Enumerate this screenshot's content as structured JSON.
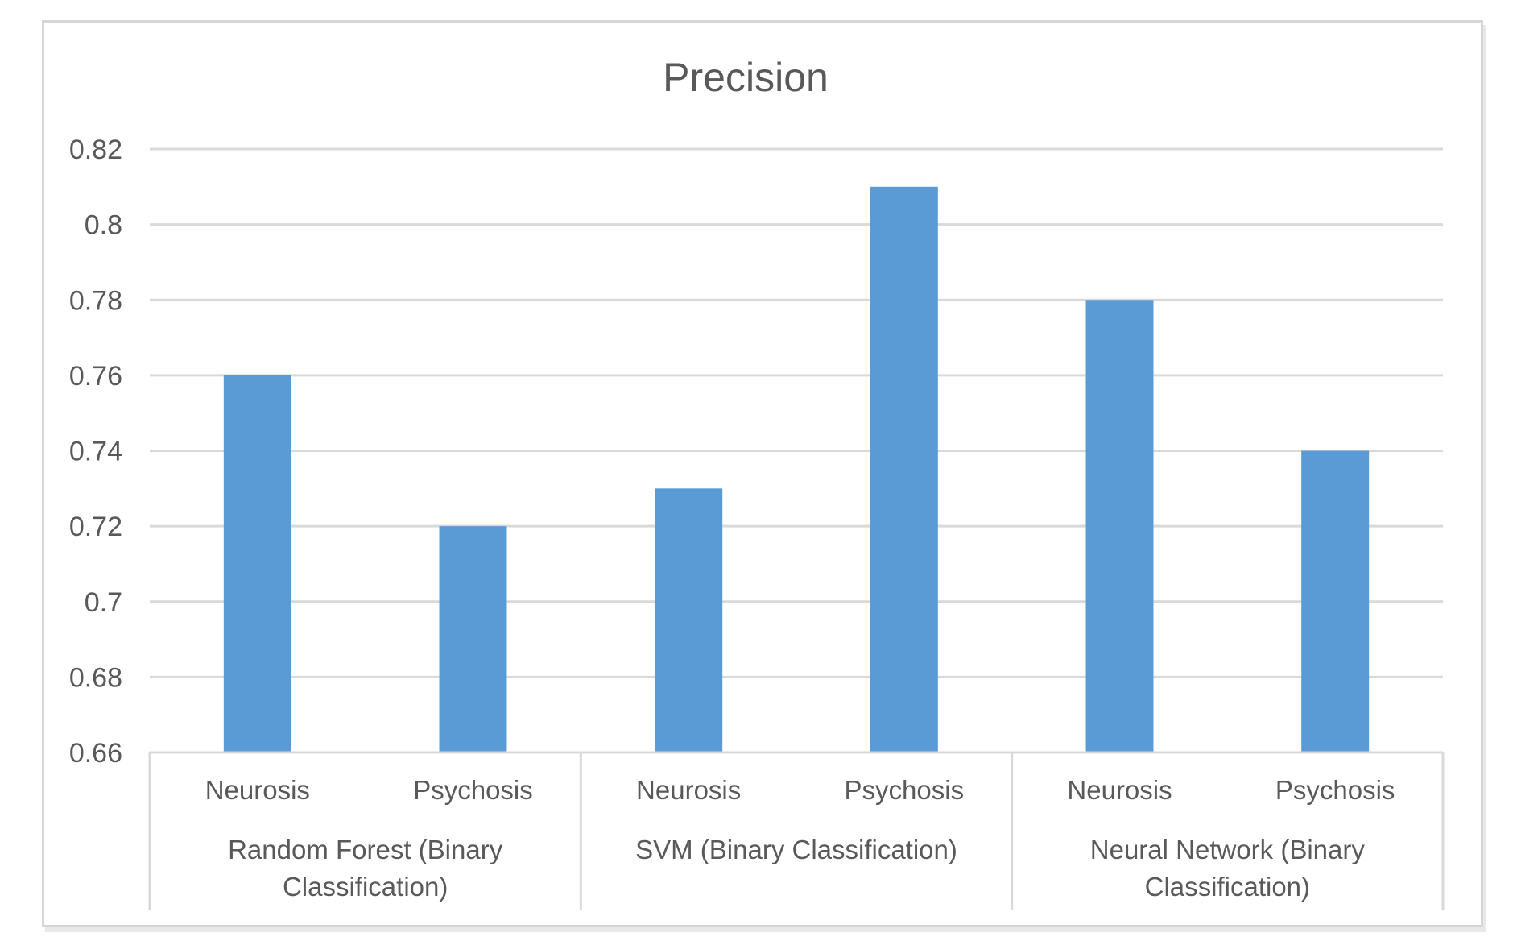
{
  "chart_data": {
    "type": "bar",
    "title": "Precision",
    "xlabel": "",
    "ylabel": "",
    "ylim": [
      0.66,
      0.82
    ],
    "yticks": [
      "0.82",
      "0.8",
      "0.78",
      "0.76",
      "0.74",
      "0.72",
      "0.7",
      "0.68",
      "0.66"
    ],
    "grid": true,
    "legend": "none",
    "bar_color": "#5b9bd5",
    "groups": [
      {
        "label": "Random Forest (Binary Classification)",
        "label_lines": [
          "Random Forest (Binary",
          "Classification)"
        ]
      },
      {
        "label": "SVM (Binary Classification)",
        "label_lines": [
          "SVM (Binary Classification)"
        ]
      },
      {
        "label": "Neural Network (Binary Classification)",
        "label_lines": [
          "Neural Network (Binary",
          "Classification)"
        ]
      }
    ],
    "categories": [
      "Neurosis",
      "Psychosis",
      "Neurosis",
      "Psychosis",
      "Neurosis",
      "Psychosis"
    ],
    "values": [
      0.76,
      0.72,
      0.73,
      0.81,
      0.78,
      0.74
    ]
  }
}
